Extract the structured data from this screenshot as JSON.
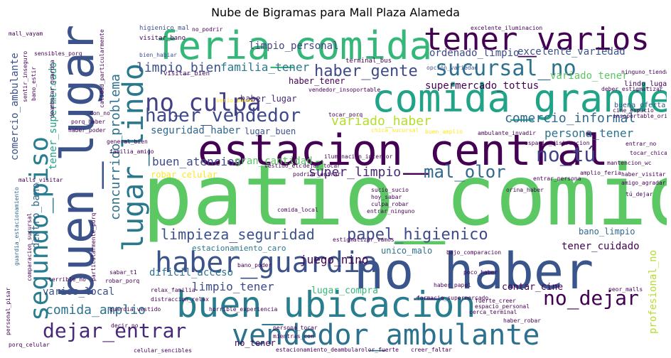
{
  "title": "Nube de Bigramas para Mall Plaza Alameda",
  "words": {
    "patio_comida": "patio_comida",
    "no_haber": "no_haber",
    "estacion_central": "estacion_central",
    "buen_lugar": "buen_lugar",
    "feria_comida": "feria_comida",
    "tener_varios": "tener_varios",
    "comida_grande": "comida_grande",
    "buen_ubicacion": "buen_ubicacion",
    "vendedor_ambulante": "vendedor_ambulante",
    "segundo_piso": "segundo_piso",
    "lugar_lindo": "lugar_lindo",
    "haber_guardia": "haber_guardia",
    "dejar_entrar": "dejar_entrar",
    "no_culpa": "no_culpa",
    "sucursal_no": "sucursal_no",
    "haber_vendedor": "haber_vendedor",
    "haber_gente": "haber_gente",
    "limpio_bien": "limpio_bien",
    "familia_tener": "familia_tener",
    "limpieza_seguridad": "limpieza_seguridad",
    "papel_higienico": "papel_higienico",
    "no_dejar": "no_dejar",
    "no_tu": "no_tú",
    "mal_olor": "mal_olor",
    "concurrido_problema": "concurrido_problema",
    "comida_amplio": "comida_amplio",
    "limpio_personal": "limpio_personal",
    "variado_haber": "variado_haber",
    "comercio_informal": "comercio_informal",
    "seguridad_haber": "seguridad_haber",
    "buen_atencion": "buen_atencion",
    "super_limpio": "super_limpio",
    "juego_nino": "juego_nino",
    "limpio_tener": "limpio_tener",
    "comercio_ambulante": "comercio_ambulante",
    "ordenado_limpio": "ordenado_limpio",
    "supermercado_tottus": "supermercado_tottus",
    "excelente_variedad": "excelente_variedad",
    "variado_tener": "variado_tener",
    "persona_tener": "persona_tener",
    "haber_tener": "haber_tener",
    "haber_lugar": "haber_lugar",
    "lugar_buen": "lugar_buen",
    "robar_celular": "robar_celular",
    "gran_cantidad": "gran_cantidad",
    "tener_supermercado": "tener_supermercado",
    "dentro_bano": "dentro_bano",
    "varios_local": "varios_local",
    "dificil_acceso": "dificil_acceso",
    "tener_cuidado": "tener_cuidado",
    "bano_limpio": "bano_limpio",
    "unico_malo": "unico_malo",
    "contar_cine": "contar_cine",
    "lugar_compra": "lugar_compra",
    "no_tener": "no_tener",
    "profesional_no": "profesional_no",
    "estacionamiento_caro": "estacionamiento_caro",
    "lindo_lugar": "lindo_lugar",
    "buena_oferta": "buena_oferta",
    "higienico_mal": "higienico_mal",
    "no_podrir": "no_podrir",
    "visitar_bien": "visitar_bien",
    "visitar_bano": "visitar_bano",
    "bien_habiar": "bien_habiar",
    "terminal_bus": "terminal_bus",
    "opcion_variedad": "opción_variedad",
    "excelente_iluminacion": "excelente_iluminacion",
    "vendedor_insoportable": "vendedor_insoportable",
    "serio_bueno": "serio_bueno",
    "sensibles_porq": "sensibles_porq",
    "guardia_seguridad": "guardia_estacionamiento",
    "haber_visitar": "haber_visitar",
    "amigo_agradar": "amigo_agradar_comida",
    "tocar_chica": "tocar_chica",
    "chica_sucursal": "chica_sucursal",
    "buen_amplio": "buen_amplio",
    "general_bien": "general_bien",
    "familia_amigo": "familia_amigo",
    "sucio_sucio": "sucio_sucio",
    "hoy_sabar": "hoy_sabar",
    "culpa_robar": "culpa_robar",
    "comida_local": "comida_local",
    "entrar_persona": "entrar_persona",
    "orina_haber": "orina_haber",
    "estigmatizar_vamos": "estigmatizar_vamos",
    "bajo_comparacion": "bajo_comparacion",
    "relax_familia": "relax_familia",
    "distraccion_relax": "distraccion_relax",
    "farmacia_supermercado": "farmacia_supermercado",
    "cerca_terminal": "cerca_terminal",
    "haber_robar": "haber_robar",
    "peor_malls": "peor_malls",
    "olor_fuerte": "olor_fuerte",
    "celular_sencibles": "celular_sencibles",
    "porq_celular": "porq_celular",
    "decir_no": "decir_no",
    "persona_tocar": "persona_tocar",
    "mientras_con": "mientras_con",
    "creer_faltar": "creer_faltar",
    "robar_porq": "robar_porq",
    "sabar_t1": "sabar_t1",
    "guardia_vestido": "guardia_vestido",
    "horrible_experiencia": "horrible_experiencia",
    "estacionamiento_deambular": "estacionamiento_deambular",
    "malls_visitar": "malls_visitar",
    "haber_poder": "haber_poder",
    "dejar_tocar": "dejar_tocar",
    "podriar_entrar": "podriar_entrar",
    "iluminacion_interior": "iluminacion_interior",
    "espacio_distraccion": "espacio_distraccion",
    "ambulante_invadir": "ambulante_invadir",
    "entrar_ninguno": "entrar_ninguno",
    "amplio_feria": "amplio_feria",
    "tu_dejar": "tú_dejar",
    "entrar_no": "entrar_no",
    "mantencion_wc": "mantencion_wc",
    "vestido_etc": "vestido_etc",
    "poco_haber": "poco_haber",
    "haber_papel": "haber_papel",
    "fuerte_creer": "fuerte_creer",
    "espacio_personal": "espacio_personal",
    "bano_poder": "bano_poder",
    "terrible_no": "terrible_no",
    "cine_espacio": "cine_espacio",
    "insoportable_orina": "insoportable_orina",
    "deber_estigmatizar": "deber_estigmatizar",
    "ninguno_tiendas": "ninguno_tiendas",
    "comparacion_sucursal": "comparacion_sucursal",
    "particularmente_porq": "particularmente_porq",
    "bano_estir": "bano_estir",
    "calidad_particularmente": "calidad_particularmente",
    "deambular_guardia": "deambular_guardia",
    "sentir_inseguro": "sentir_inseguro",
    "personal_pisar": "personal_pisar",
    "porq_haber": "porq_haber",
    "con_no": "con_no",
    "tocar_porq": "tocar_porq",
    "mall_vayam": "mall_vayam"
  }
}
